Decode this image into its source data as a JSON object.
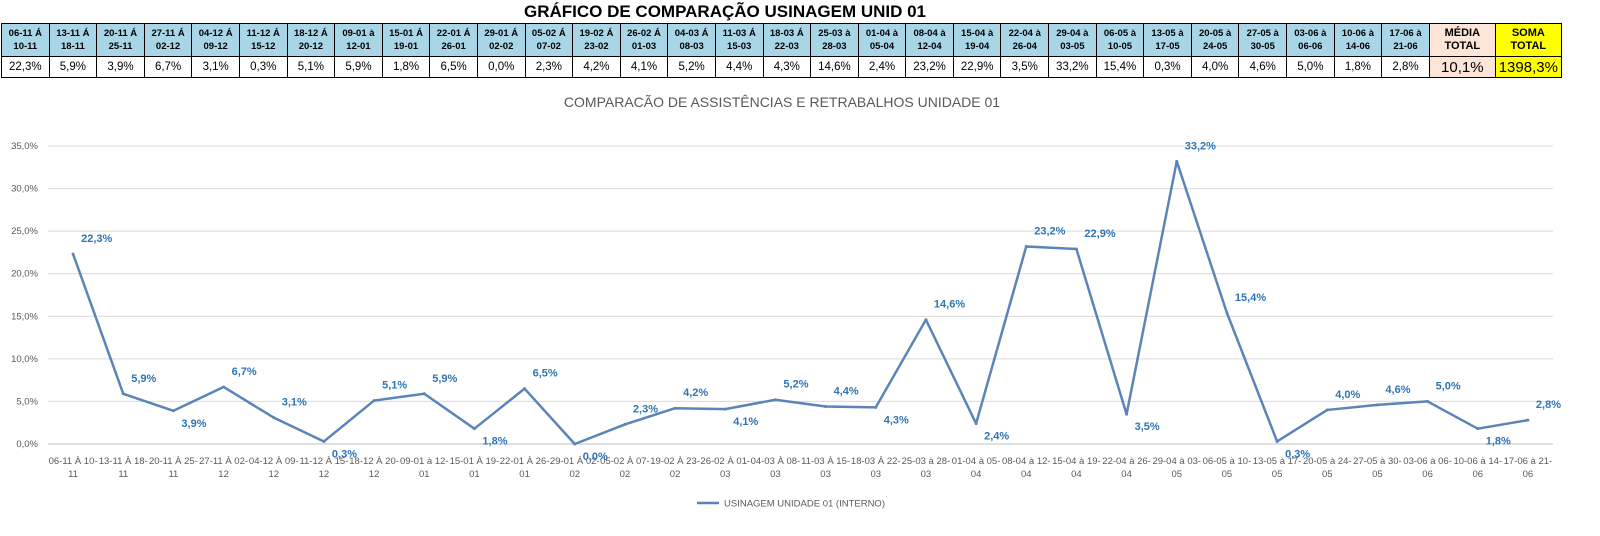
{
  "sheet_title": "GRÁFICO DE COMPARAÇÃO USINAGEM UNID 01",
  "table": {
    "periods": [
      {
        "l1": "06-11 Á",
        "l2": "10-11",
        "v": "22,3%"
      },
      {
        "l1": "13-11 Á",
        "l2": "18-11",
        "v": "5,9%"
      },
      {
        "l1": "20-11 Á",
        "l2": "25-11",
        "v": "3,9%"
      },
      {
        "l1": "27-11 Á",
        "l2": "02-12",
        "v": "6,7%"
      },
      {
        "l1": "04-12 Á",
        "l2": "09-12",
        "v": "3,1%"
      },
      {
        "l1": "11-12 Á",
        "l2": "15-12",
        "v": "0,3%"
      },
      {
        "l1": "18-12 Á",
        "l2": "20-12",
        "v": "5,1%"
      },
      {
        "l1": "09-01 à",
        "l2": "12-01",
        "v": "5,9%"
      },
      {
        "l1": "15-01 Á",
        "l2": "19-01",
        "v": "1,8%"
      },
      {
        "l1": "22-01 Á",
        "l2": "26-01",
        "v": "6,5%"
      },
      {
        "l1": "29-01 Á",
        "l2": "02-02",
        "v": "0,0%"
      },
      {
        "l1": "05-02 Á",
        "l2": "07-02",
        "v": "2,3%"
      },
      {
        "l1": "19-02 Á",
        "l2": "23-02",
        "v": "4,2%"
      },
      {
        "l1": "26-02 Á",
        "l2": "01-03",
        "v": "4,1%"
      },
      {
        "l1": "04-03 Á",
        "l2": "08-03",
        "v": "5,2%"
      },
      {
        "l1": "11-03 Á",
        "l2": "15-03",
        "v": "4,4%"
      },
      {
        "l1": "18-03 Á",
        "l2": "22-03",
        "v": "4,3%"
      },
      {
        "l1": "25-03 à",
        "l2": "28-03",
        "v": "14,6%"
      },
      {
        "l1": "01-04 à",
        "l2": "05-04",
        "v": "2,4%"
      },
      {
        "l1": "08-04 à",
        "l2": "12-04",
        "v": "23,2%"
      },
      {
        "l1": "15-04 à",
        "l2": "19-04",
        "v": "22,9%"
      },
      {
        "l1": "22-04 à",
        "l2": "26-04",
        "v": "3,5%"
      },
      {
        "l1": "29-04 à",
        "l2": "03-05",
        "v": "33,2%"
      },
      {
        "l1": "06-05 à",
        "l2": "10-05",
        "v": "15,4%"
      },
      {
        "l1": "13-05 à",
        "l2": "17-05",
        "v": "0,3%"
      },
      {
        "l1": "20-05 à",
        "l2": "24-05",
        "v": "4,0%"
      },
      {
        "l1": "27-05 à",
        "l2": "30-05",
        "v": "4,6%"
      },
      {
        "l1": "03-06 à",
        "l2": "06-06",
        "v": "5,0%"
      },
      {
        "l1": "10-06 à",
        "l2": "14-06",
        "v": "1,8%"
      },
      {
        "l1": "17-06 à",
        "l2": "21-06",
        "v": "2,8%"
      }
    ],
    "media": {
      "l1": "MÉDIA",
      "l2": "TOTAL",
      "v": "10,1%"
    },
    "soma": {
      "l1": "SOMA",
      "l2": "TOTAL",
      "v": "1398,3%"
    }
  },
  "chart_data": {
    "type": "line",
    "title": "COMPARACÃO DE ASSISTÊNCIAS E RETRABALHOS UNIDADE 01",
    "xlabel": "",
    "ylabel": "",
    "ylim": [
      0,
      35
    ],
    "yticks": [
      "0,0%",
      "5,0%",
      "10,0%",
      "15,0%",
      "20,0%",
      "25,0%",
      "30,0%",
      "35,0%"
    ],
    "grid": true,
    "legend": "bottom",
    "categories": [
      [
        "06-11 À 10-",
        "11"
      ],
      [
        "13-11 À 18-",
        "11"
      ],
      [
        "20-11 À 25-",
        "11"
      ],
      [
        "27-11 À 02-",
        "12"
      ],
      [
        "04-12 À 09-",
        "12"
      ],
      [
        "11-12 À 15-",
        "12"
      ],
      [
        "18-12 À 20-",
        "12"
      ],
      [
        "09-01 à 12-",
        "01"
      ],
      [
        "15-01 À 19-",
        "01"
      ],
      [
        "22-01 À 26-",
        "01"
      ],
      [
        "29-01 À 02-",
        "02"
      ],
      [
        "05-02 À 07-",
        "02"
      ],
      [
        "19-02 À 23-",
        "02"
      ],
      [
        "26-02 À 01-",
        "03"
      ],
      [
        "04-03 À 08-",
        "03"
      ],
      [
        "11-03 À 15-",
        "03"
      ],
      [
        "18-03 À 22-",
        "03"
      ],
      [
        "25-03 à 28-",
        "03"
      ],
      [
        "01-04 à 05-",
        "04"
      ],
      [
        "08-04 à 12-",
        "04"
      ],
      [
        "15-04 à 19-",
        "04"
      ],
      [
        "22-04 à 26-",
        "04"
      ],
      [
        "29-04 à 03-",
        "05"
      ],
      [
        "06-05 à 10-",
        "05"
      ],
      [
        "13-05 à 17-",
        "05"
      ],
      [
        "20-05 à 24-",
        "05"
      ],
      [
        "27-05 à 30-",
        "05"
      ],
      [
        "03-06 à 06-",
        "06"
      ],
      [
        "10-06 à 14-",
        "06"
      ],
      [
        "17-06 à 21-",
        "06"
      ]
    ],
    "series": [
      {
        "name": "USINAGEM UNIDADE 01 (INTERNO)",
        "color": "#5b84b8",
        "label_color": "#2e75b6",
        "values": [
          22.3,
          5.9,
          3.9,
          6.7,
          3.1,
          0.3,
          5.1,
          5.9,
          1.8,
          6.5,
          0.0,
          2.3,
          4.2,
          4.1,
          5.2,
          4.4,
          4.3,
          14.6,
          2.4,
          23.2,
          22.9,
          3.5,
          33.2,
          15.4,
          0.3,
          4.0,
          4.6,
          5.0,
          1.8,
          2.8
        ],
        "labels": [
          "22,3%",
          "5,9%",
          "3,9%",
          "6,7%",
          "3,1%",
          "0,3%",
          "5,1%",
          "5,9%",
          "1,8%",
          "6,5%",
          "0,0%",
          "2,3%",
          "4,2%",
          "4,1%",
          "5,2%",
          "4,4%",
          "4,3%",
          "14,6%",
          "2,4%",
          "23,2%",
          "22,9%",
          "3,5%",
          "33,2%",
          "15,4%",
          "0,3%",
          "4,0%",
          "4,6%",
          "5,0%",
          "1,8%",
          "2,8%"
        ]
      }
    ]
  }
}
